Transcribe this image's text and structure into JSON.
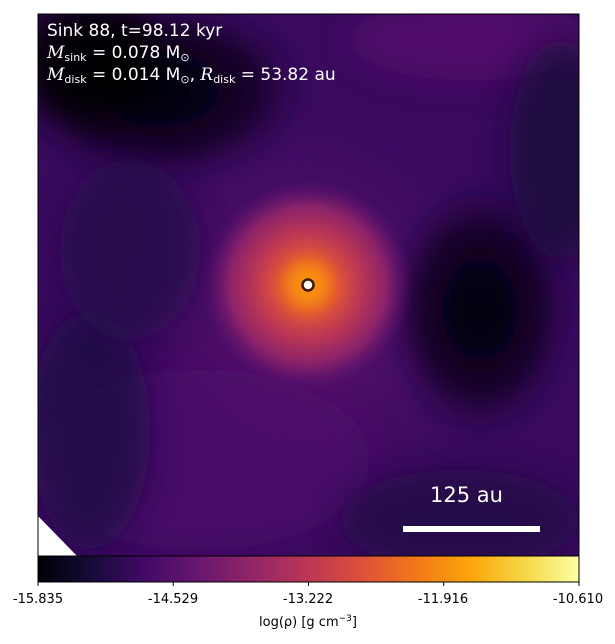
{
  "annotation": {
    "line1": "Sink 88, t=98.12 kyr",
    "m_sink_symbol": "M",
    "m_sink_sub": "sink",
    "m_sink_value": " = 0.078 M",
    "m_sink_unit_sub": "⊙",
    "m_disk_symbol": "M",
    "m_disk_sub": "disk",
    "m_disk_value": " = 0.014 M",
    "m_disk_unit_sub": "⊙",
    "r_disk_symbol": "R",
    "r_disk_sub": "disk",
    "r_disk_value": " = 53.82 au"
  },
  "scalebar": {
    "label": "125 au"
  },
  "colorbar": {
    "colormap": "inferno",
    "min": -15.835,
    "max": -10.61,
    "ticks": [
      "-15.835",
      "-14.529",
      "-13.222",
      "-11.916",
      "-10.610"
    ],
    "label_text": "log(ρ) [g cm",
    "label_exp": "−3",
    "label_close": "]"
  },
  "colors": {
    "low": "#000004",
    "mid": "#5c126e",
    "high": "#f98e09",
    "top": "#fcffa4",
    "sink_marker": "#ffffff"
  }
}
